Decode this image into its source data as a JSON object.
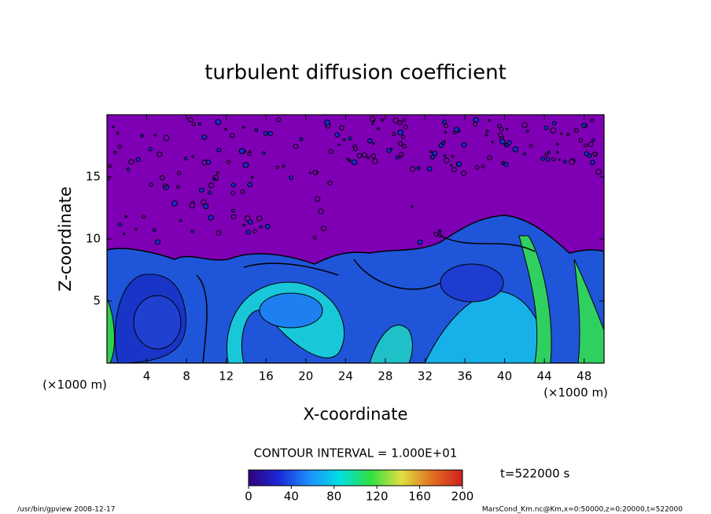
{
  "chart_data": {
    "type": "contour",
    "title": "turbulent diffusion coefficient",
    "x_label": "X-coordinate",
    "y_label": "Z-coordinate",
    "x_unit": "(×1000 m)",
    "y_unit": "(×1000 m)",
    "xlim": [
      0,
      50
    ],
    "xticks": [
      4,
      8,
      12,
      16,
      20,
      24,
      28,
      32,
      36,
      40,
      44,
      48
    ],
    "ylim": [
      0,
      20
    ],
    "yticks": [
      5,
      10,
      15
    ],
    "contour_interval": "CONTOUR INTERVAL = 1.000E+01",
    "time_label": "t=522000 s",
    "colorbar": {
      "clim": [
        0,
        200
      ],
      "ticks": [
        0,
        40,
        80,
        120,
        160,
        200
      ],
      "colormap": [
        "#30007a",
        "#1a2ad8",
        "#1e90ff",
        "#00e0e0",
        "#30e040",
        "#e0e040",
        "#e07020",
        "#d02020"
      ]
    },
    "footer_left": "/usr/bin/gpview  2008-12-17",
    "footer_right": "MarsCond_Km.nc@Km,x=0:50000,z=0:20000,t=522000"
  }
}
